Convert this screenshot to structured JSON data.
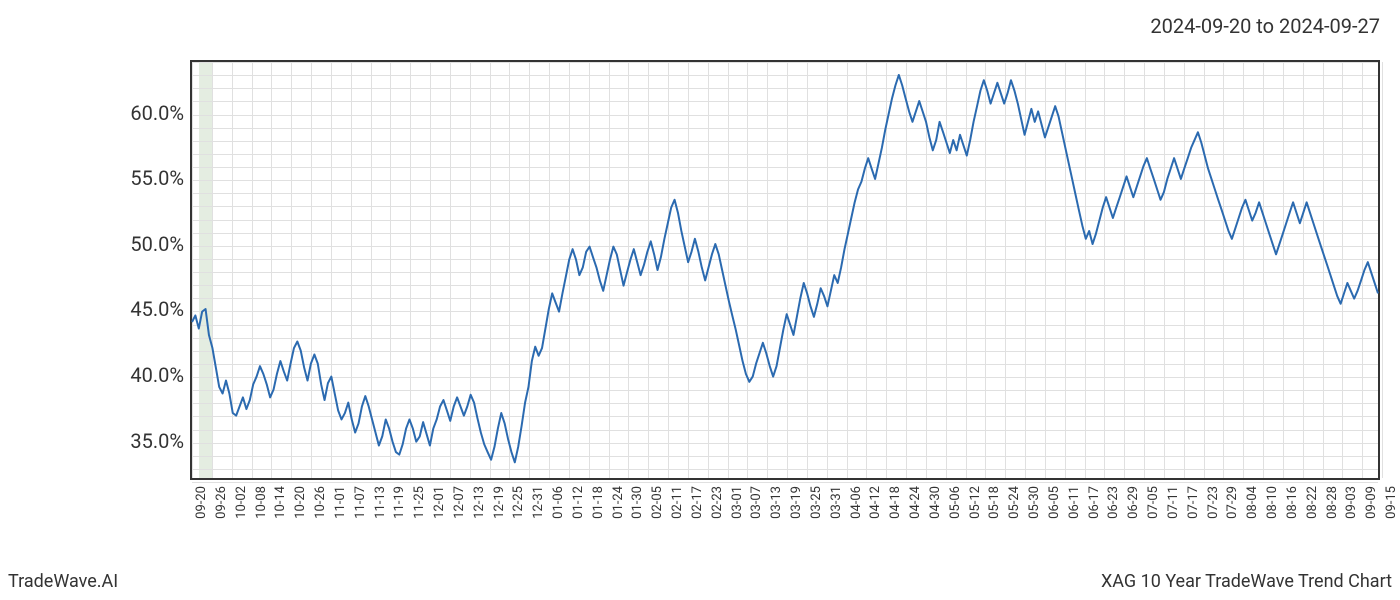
{
  "date_range_label": "2024-09-20 to 2024-09-27",
  "branding": "TradeWave.AI",
  "chart_title": "XAG 10 Year TradeWave Trend Chart",
  "chart": {
    "type": "line",
    "background_color": "#ffffff",
    "grid_color": "#e0e0e0",
    "line_color": "#2b6ab0",
    "line_width": 2,
    "axis_color": "#333333",
    "text_color": "#333333",
    "highlight_band_color": "#dde9d9",
    "y_axis": {
      "min": 32,
      "max": 64,
      "ticks": [
        35.0,
        40.0,
        45.0,
        50.0,
        55.0,
        60.0
      ],
      "tick_labels": [
        "35.0%",
        "40.0%",
        "45.0%",
        "50.0%",
        "55.0%",
        "60.0%"
      ],
      "label_fontsize": 20
    },
    "x_axis": {
      "tick_labels": [
        "09-20",
        "09-26",
        "10-02",
        "10-08",
        "10-14",
        "10-20",
        "10-26",
        "11-01",
        "11-07",
        "11-13",
        "11-19",
        "11-25",
        "12-01",
        "12-07",
        "12-13",
        "12-19",
        "12-25",
        "12-31",
        "01-06",
        "01-12",
        "01-18",
        "01-24",
        "01-30",
        "02-05",
        "02-11",
        "02-17",
        "02-23",
        "03-01",
        "03-07",
        "03-13",
        "03-19",
        "03-25",
        "03-31",
        "04-06",
        "04-12",
        "04-18",
        "04-24",
        "04-30",
        "05-06",
        "05-12",
        "05-18",
        "05-24",
        "05-30",
        "06-05",
        "06-11",
        "06-17",
        "06-23",
        "06-29",
        "07-05",
        "07-11",
        "07-17",
        "07-23",
        "07-29",
        "08-04",
        "08-10",
        "08-16",
        "08-22",
        "08-28",
        "09-03",
        "09-09",
        "09-15"
      ],
      "label_fontsize": 13,
      "rotation": -90
    },
    "highlight_band": {
      "start_index": 2,
      "end_index": 6
    },
    "series": [
      44.0,
      44.5,
      43.5,
      44.8,
      45.0,
      43.0,
      42.0,
      40.5,
      39.0,
      38.5,
      39.5,
      38.5,
      37.0,
      36.8,
      37.5,
      38.2,
      37.3,
      38.0,
      39.2,
      39.8,
      40.6,
      40.0,
      39.2,
      38.2,
      38.8,
      40.0,
      41.0,
      40.2,
      39.5,
      40.8,
      42.0,
      42.5,
      41.8,
      40.5,
      39.5,
      40.8,
      41.5,
      40.8,
      39.2,
      38.0,
      39.3,
      39.8,
      38.5,
      37.2,
      36.5,
      37.0,
      37.8,
      36.5,
      35.5,
      36.2,
      37.5,
      38.3,
      37.5,
      36.5,
      35.5,
      34.5,
      35.2,
      36.5,
      35.8,
      34.8,
      34.0,
      33.8,
      34.6,
      35.8,
      36.5,
      35.8,
      34.8,
      35.2,
      36.3,
      35.4,
      34.5,
      35.8,
      36.5,
      37.5,
      38.0,
      37.2,
      36.4,
      37.5,
      38.2,
      37.5,
      36.8,
      37.5,
      38.4,
      37.8,
      36.6,
      35.5,
      34.6,
      34.0,
      33.4,
      34.4,
      35.8,
      37.0,
      36.2,
      35.0,
      34.0,
      33.2,
      34.4,
      36.0,
      37.8,
      39.0,
      41.0,
      42.1,
      41.4,
      42.0,
      43.5,
      45.0,
      46.2,
      45.5,
      44.8,
      46.2,
      47.5,
      48.8,
      49.6,
      48.8,
      47.6,
      48.2,
      49.4,
      49.8,
      49.0,
      48.2,
      47.2,
      46.4,
      47.6,
      48.8,
      49.8,
      49.2,
      48.0,
      46.8,
      47.8,
      48.8,
      49.6,
      48.6,
      47.6,
      48.4,
      49.4,
      50.2,
      49.2,
      48.0,
      49.0,
      50.4,
      51.6,
      52.8,
      53.4,
      52.4,
      51.0,
      49.8,
      48.6,
      49.4,
      50.4,
      49.4,
      48.2,
      47.2,
      48.2,
      49.2,
      50.0,
      49.2,
      48.0,
      46.8,
      45.6,
      44.5,
      43.4,
      42.2,
      41.0,
      40.0,
      39.4,
      39.8,
      40.8,
      41.6,
      42.4,
      41.6,
      40.6,
      39.8,
      40.6,
      42.0,
      43.4,
      44.6,
      43.8,
      43.0,
      44.4,
      45.8,
      47.0,
      46.2,
      45.2,
      44.4,
      45.4,
      46.6,
      46.0,
      45.2,
      46.4,
      47.6,
      47.0,
      48.2,
      49.6,
      50.8,
      52.0,
      53.2,
      54.2,
      54.8,
      55.8,
      56.6,
      55.8,
      55.0,
      56.2,
      57.4,
      58.8,
      60.0,
      61.2,
      62.2,
      63.0,
      62.2,
      61.2,
      60.2,
      59.4,
      60.2,
      61.0,
      60.2,
      59.4,
      58.2,
      57.2,
      58.0,
      59.4,
      58.6,
      57.8,
      57.0,
      58.0,
      57.2,
      58.4,
      57.6,
      56.8,
      58.0,
      59.4,
      60.6,
      61.8,
      62.6,
      61.8,
      60.8,
      61.6,
      62.4,
      61.6,
      60.8,
      61.6,
      62.6,
      61.8,
      60.8,
      59.6,
      58.4,
      59.4,
      60.4,
      59.4,
      60.2,
      59.2,
      58.2,
      59.0,
      59.8,
      60.6,
      59.8,
      58.6,
      57.4,
      56.2,
      55.0,
      53.8,
      52.6,
      51.4,
      50.4,
      51.0,
      50.0,
      50.8,
      51.8,
      52.8,
      53.6,
      52.8,
      52.0,
      52.8,
      53.6,
      54.4,
      55.2,
      54.4,
      53.6,
      54.4,
      55.2,
      56.0,
      56.6,
      55.8,
      55.0,
      54.2,
      53.4,
      54.0,
      55.0,
      55.8,
      56.6,
      55.8,
      55.0,
      55.8,
      56.6,
      57.4,
      58.0,
      58.6,
      57.8,
      56.8,
      55.8,
      55.0,
      54.2,
      53.4,
      52.6,
      51.8,
      51.0,
      50.4,
      51.2,
      52.0,
      52.8,
      53.4,
      52.6,
      51.8,
      52.4,
      53.2,
      52.4,
      51.6,
      50.8,
      50.0,
      49.2,
      50.0,
      50.8,
      51.6,
      52.4,
      53.2,
      52.4,
      51.6,
      52.4,
      53.2,
      52.4,
      51.6,
      50.8,
      50.0,
      49.2,
      48.4,
      47.6,
      46.8,
      46.0,
      45.4,
      46.2,
      47.0,
      46.4,
      45.8,
      46.4,
      47.2,
      48.0,
      48.6,
      47.8,
      47.0,
      46.2
    ]
  }
}
